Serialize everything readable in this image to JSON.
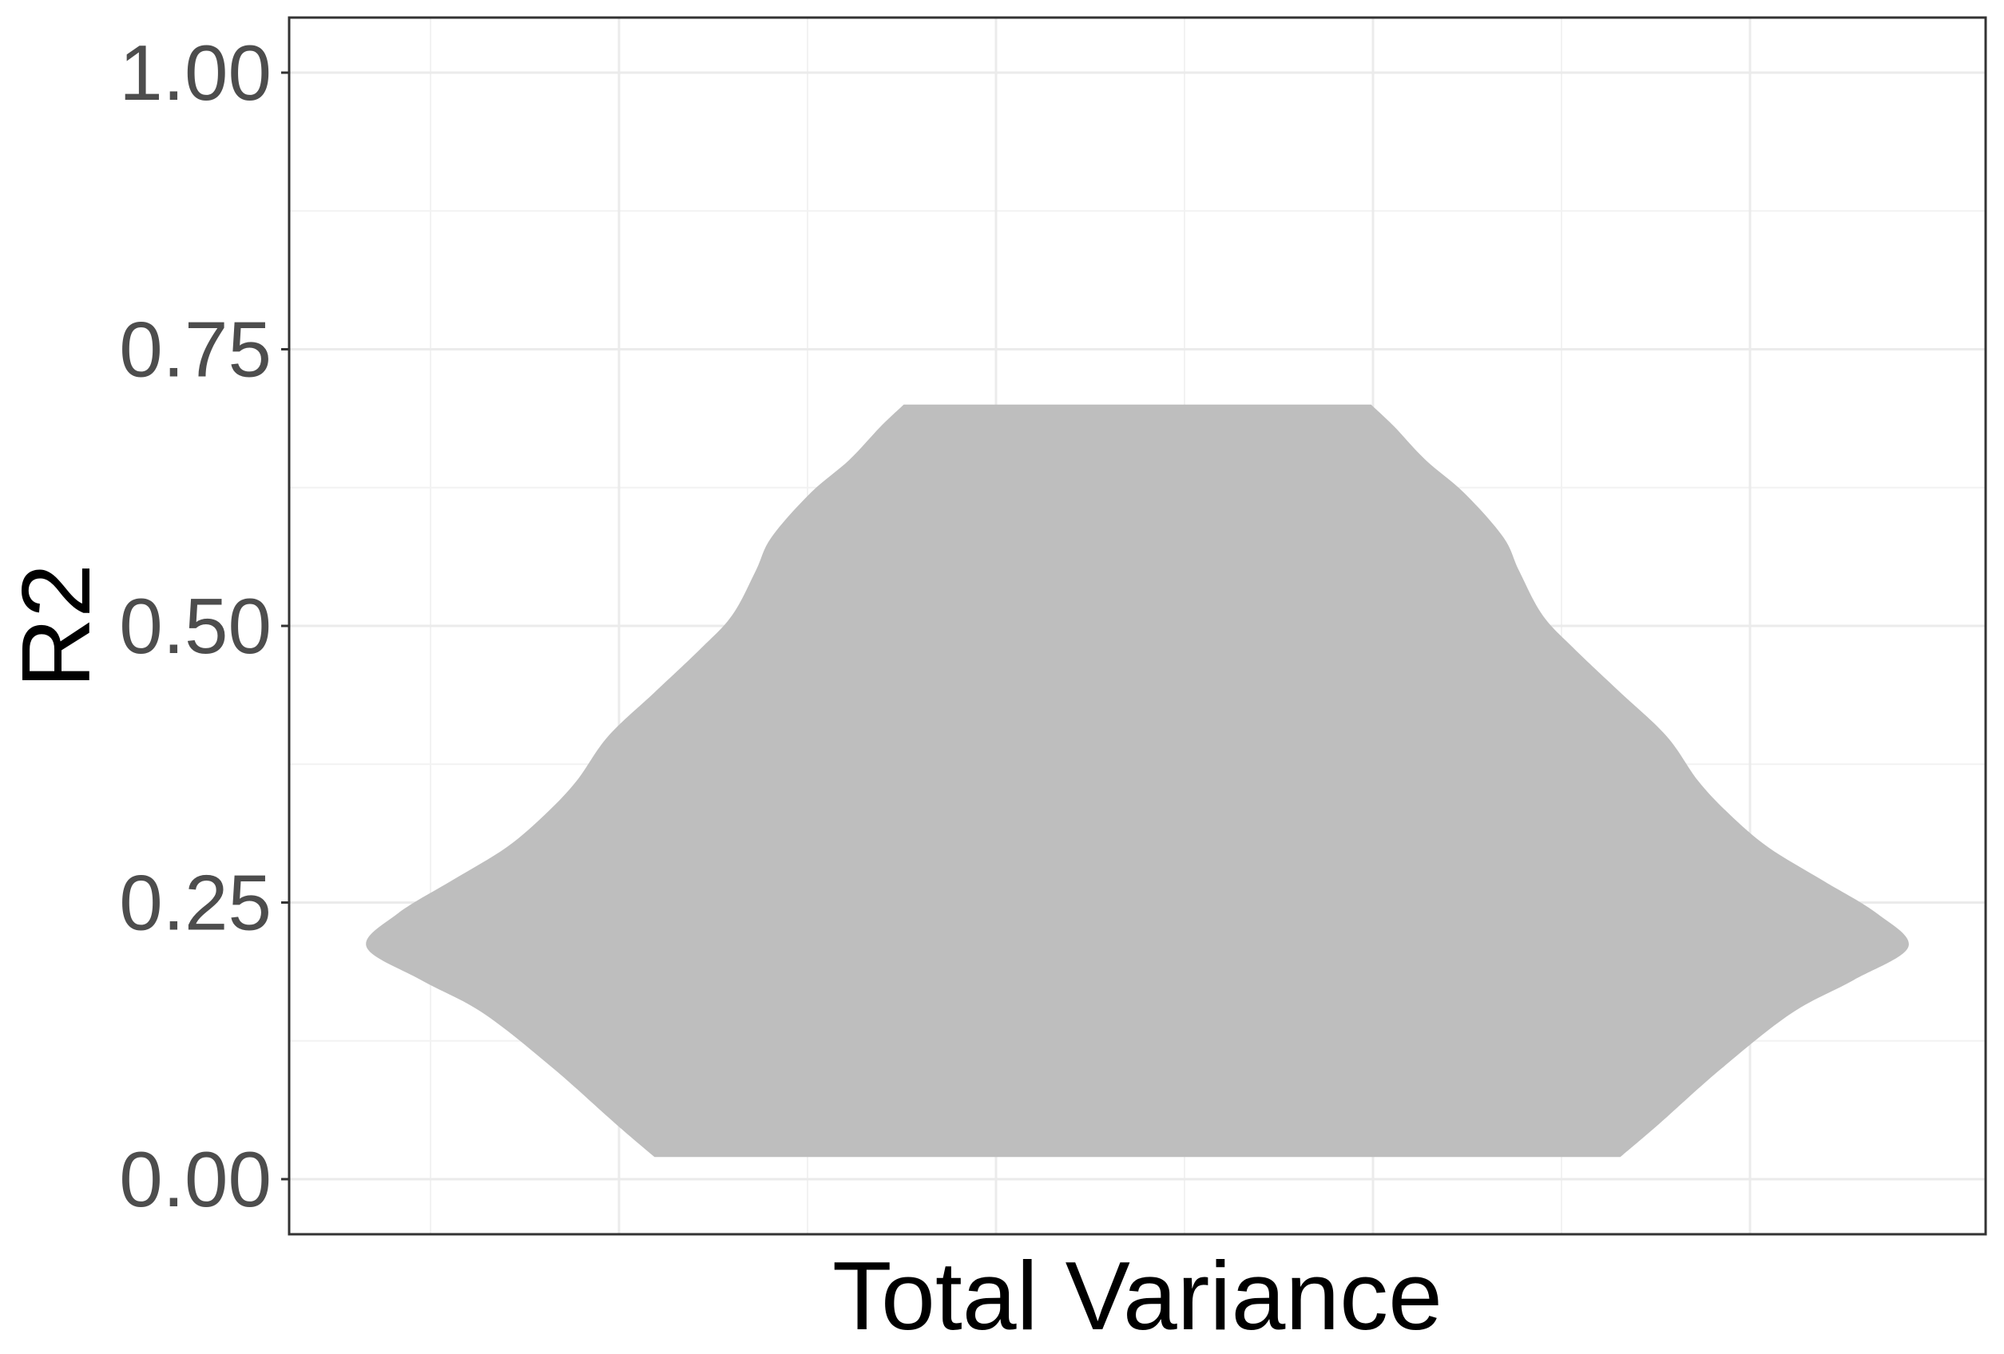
{
  "chart_data": {
    "type": "violin",
    "title": "",
    "xlabel": "Total Variance",
    "ylabel": "R2",
    "ylim": [
      -0.1,
      1.05
    ],
    "yticks": [
      0.0,
      0.25,
      0.5,
      0.75,
      1.0
    ],
    "ytick_labels": [
      "0.00",
      "0.25",
      "0.50",
      "0.75",
      "1.00"
    ],
    "grid": true,
    "legend": "none",
    "fill_color": "#bebebe",
    "panel_border_color": "#333333",
    "series": [
      {
        "category": "Total Variance",
        "range": [
          0.02,
          0.7
        ],
        "density_profile": {
          "y": [
            0.02,
            0.05,
            0.1,
            0.15,
            0.18,
            0.21,
            0.24,
            0.27,
            0.3,
            0.33,
            0.36,
            0.4,
            0.44,
            0.48,
            0.51,
            0.55,
            0.58,
            0.62,
            0.65,
            0.68,
            0.7
          ],
          "halfwidth": [
            0.62,
            0.67,
            0.75,
            0.84,
            0.92,
            0.99,
            0.95,
            0.88,
            0.81,
            0.76,
            0.72,
            0.68,
            0.62,
            0.56,
            0.52,
            0.49,
            0.47,
            0.42,
            0.37,
            0.33,
            0.3
          ]
        }
      }
    ]
  }
}
